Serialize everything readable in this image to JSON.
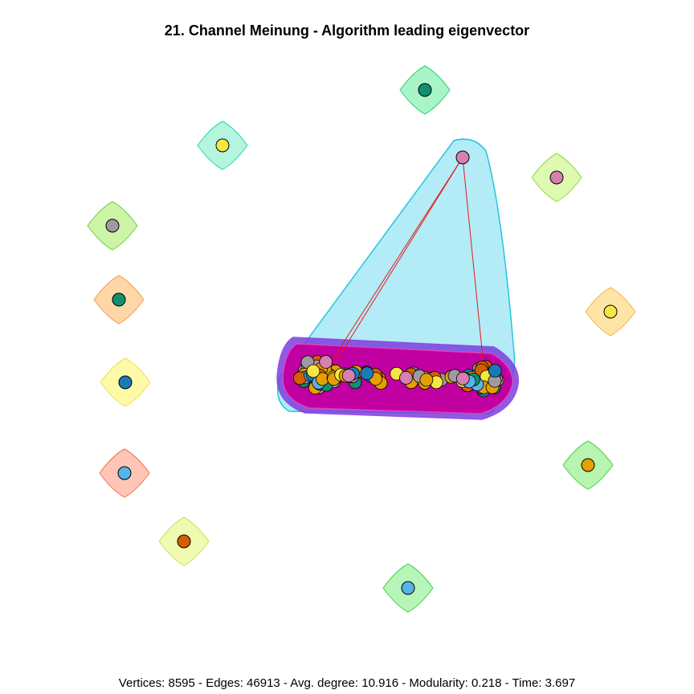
{
  "title": "21. Channel Meinung - Algorithm leading eigenvector",
  "footer": "Vertices: 8595 - Edges: 46913 - Avg. degree: 10.916 - Modularity: 0.218 - Time: 3.697",
  "colors": {
    "edge": "#e41a1c",
    "main_community_fill": "#c000a0",
    "apex_community_fill": "#b3ebf7",
    "apex_community_stroke": "#22c7e0"
  },
  "isolated_communities": [
    {
      "fill": "#aaf5c8",
      "stroke": "#2ecc71",
      "node": "#109070"
    },
    {
      "fill": "#b5f5e0",
      "stroke": "#2bd9a0",
      "node": "#f5e642"
    },
    {
      "fill": "#ddfab0",
      "stroke": "#8fd94a",
      "node": "#d580b0"
    },
    {
      "fill": "#ccf5a8",
      "stroke": "#6ccf3a",
      "node": "#a09aa0"
    },
    {
      "fill": "#ffd6a8",
      "stroke": "#f0a050",
      "node": "#109070"
    },
    {
      "fill": "#ffe4a8",
      "stroke": "#f0b84a",
      "node": "#f5e642"
    },
    {
      "fill": "#fffaa8",
      "stroke": "#e8e060",
      "node": "#1a7ab8"
    },
    {
      "fill": "#b8f5b0",
      "stroke": "#4cd04c",
      "node": "#e8a000"
    },
    {
      "fill": "#ffc6b8",
      "stroke": "#f07050",
      "node": "#56b4e9"
    },
    {
      "fill": "#f0fab0",
      "stroke": "#c8e060",
      "node": "#d55e00"
    },
    {
      "fill": "#b8f5b8",
      "stroke": "#48d048",
      "node": "#56b4e9"
    }
  ]
}
